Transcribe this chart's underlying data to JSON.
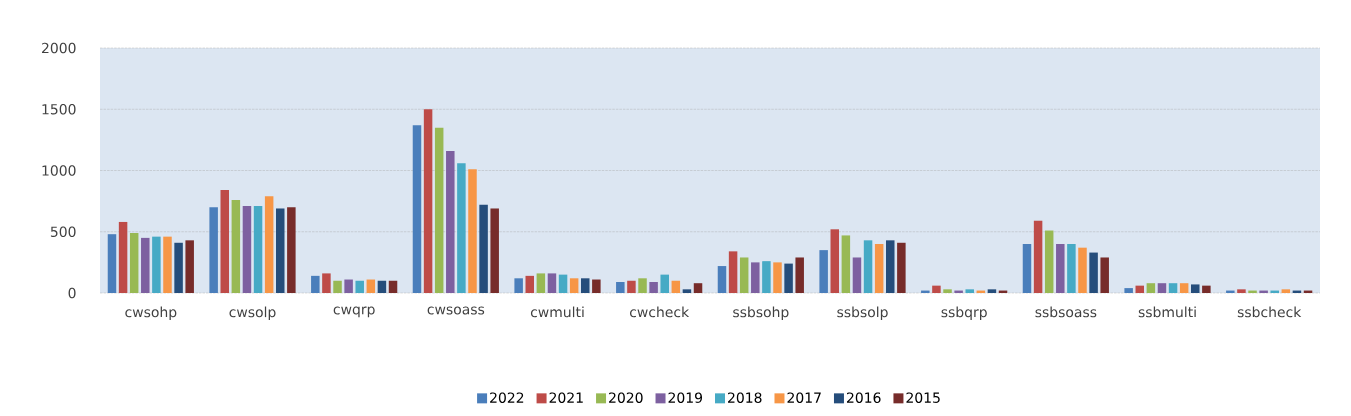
{
  "chart_data": {
    "type": "bar",
    "categories": [
      "cwsohp",
      "cwsolp",
      "cwqrp",
      "cwsoass",
      "cwmulti",
      "cwcheck",
      "ssbsohp",
      "ssbsolp",
      "ssbqrp",
      "ssbsoass",
      "ssbmulti",
      "ssbcheck"
    ],
    "series": [
      {
        "name": "2022",
        "color": "#4a7ebb",
        "values": [
          480,
          700,
          140,
          1370,
          120,
          90,
          220,
          350,
          20,
          400,
          40,
          20
        ]
      },
      {
        "name": "2021",
        "color": "#be4b48",
        "values": [
          580,
          840,
          160,
          1500,
          140,
          100,
          340,
          520,
          60,
          590,
          60,
          30
        ]
      },
      {
        "name": "2020",
        "color": "#98b954",
        "values": [
          490,
          760,
          100,
          1350,
          160,
          120,
          290,
          470,
          30,
          510,
          80,
          20
        ]
      },
      {
        "name": "2019",
        "color": "#7d60a0",
        "values": [
          450,
          710,
          110,
          1160,
          160,
          90,
          250,
          290,
          20,
          400,
          80,
          20
        ]
      },
      {
        "name": "2018",
        "color": "#46aac5",
        "values": [
          460,
          710,
          100,
          1060,
          150,
          150,
          260,
          430,
          30,
          400,
          80,
          20
        ]
      },
      {
        "name": "2017",
        "color": "#f79646",
        "values": [
          460,
          790,
          110,
          1010,
          120,
          100,
          250,
          400,
          20,
          370,
          80,
          30
        ]
      },
      {
        "name": "2016",
        "color": "#254d7b",
        "values": [
          410,
          690,
          100,
          720,
          120,
          30,
          240,
          430,
          30,
          330,
          70,
          20
        ]
      },
      {
        "name": "2015",
        "color": "#772c2a",
        "values": [
          430,
          700,
          100,
          690,
          110,
          80,
          290,
          410,
          20,
          290,
          60,
          20
        ]
      }
    ],
    "ylim": [
      0,
      2000
    ],
    "yticks": [
      0,
      500,
      1000,
      1500,
      2000
    ],
    "grid": "y",
    "legend": "bottom"
  }
}
